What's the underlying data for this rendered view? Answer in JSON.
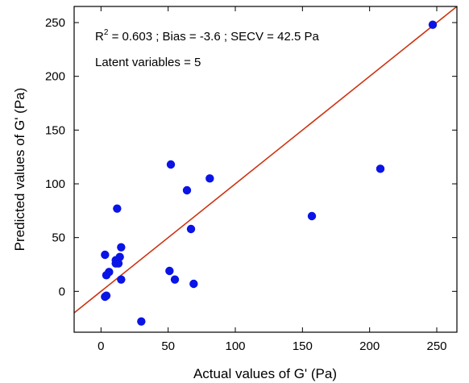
{
  "chart_data": {
    "type": "scatter",
    "title": "",
    "xlabel": "Actual values of G' (Pa)",
    "ylabel": "Predicted values of G' (Pa)",
    "xlim": [
      -20,
      265
    ],
    "ylim": [
      -38,
      265
    ],
    "xticks": [
      0,
      50,
      100,
      150,
      200,
      250
    ],
    "yticks": [
      0,
      50,
      100,
      150,
      200,
      250
    ],
    "grid": false,
    "legend": "none",
    "annotations": {
      "r2_label": "R",
      "r2_sup": "2",
      "stats_rest": " = 0.603 ; Bias = -3.6  ; SECV = 42.5 Pa",
      "latent": "Latent variables = 5"
    },
    "line": {
      "type": "identity",
      "x": [
        -20,
        265
      ],
      "y": [
        -20,
        265
      ],
      "color": "#cc3311"
    },
    "point_color": "#0a14e6",
    "points": [
      {
        "x": 247,
        "y": 248
      },
      {
        "x": 208,
        "y": 114
      },
      {
        "x": 157,
        "y": 70
      },
      {
        "x": 81,
        "y": 105
      },
      {
        "x": 69,
        "y": 7
      },
      {
        "x": 67,
        "y": 58
      },
      {
        "x": 64,
        "y": 94
      },
      {
        "x": 55,
        "y": 11
      },
      {
        "x": 52,
        "y": 118
      },
      {
        "x": 51,
        "y": 19
      },
      {
        "x": 30,
        "y": -28
      },
      {
        "x": 15,
        "y": 41
      },
      {
        "x": 15,
        "y": 11
      },
      {
        "x": 14,
        "y": 32
      },
      {
        "x": 13,
        "y": 26
      },
      {
        "x": 12,
        "y": 77
      },
      {
        "x": 11,
        "y": 29
      },
      {
        "x": 11,
        "y": 26
      },
      {
        "x": 6,
        "y": 18
      },
      {
        "x": 4,
        "y": 15
      },
      {
        "x": 3,
        "y": 34
      },
      {
        "x": 4,
        "y": -4
      },
      {
        "x": 3,
        "y": -5
      }
    ]
  }
}
